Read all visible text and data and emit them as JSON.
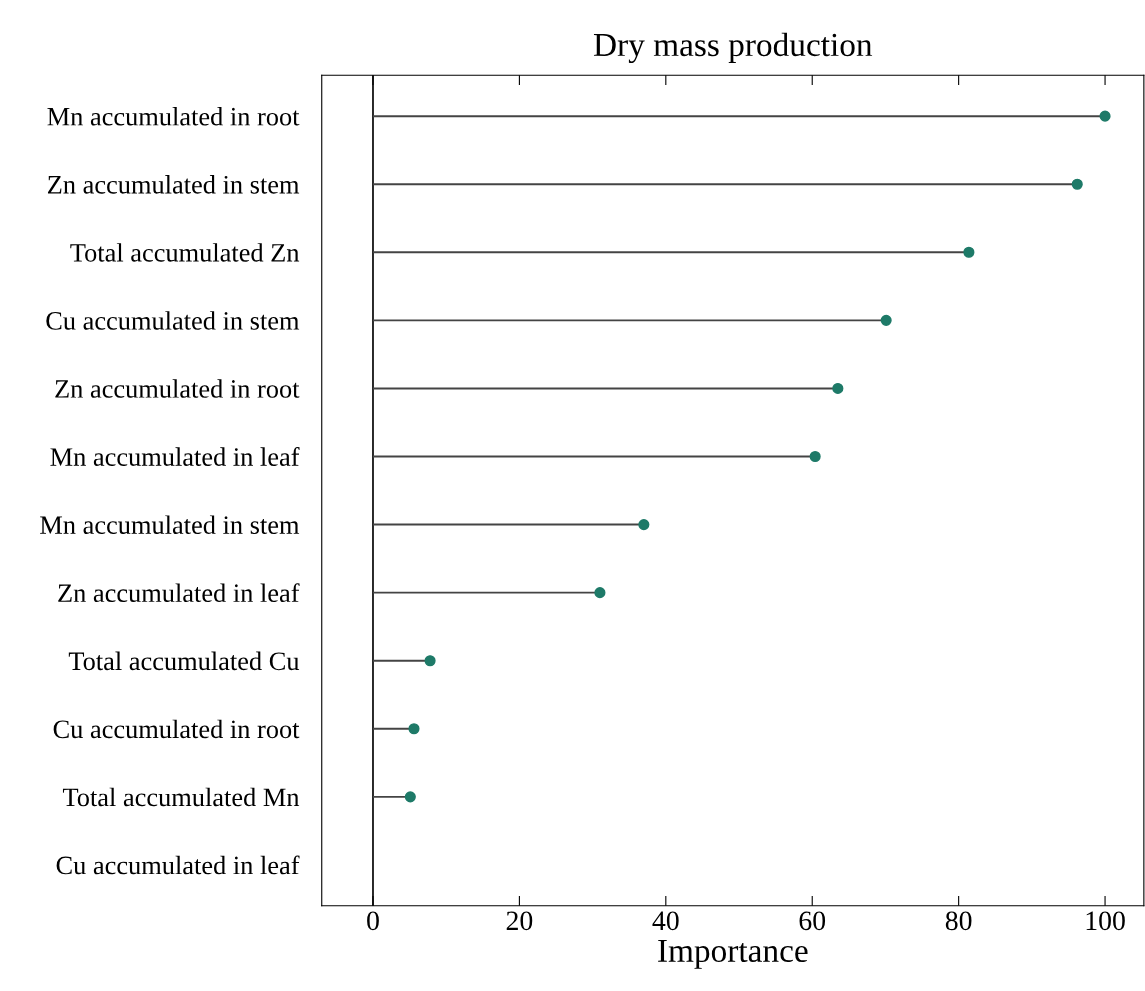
{
  "chart_data": {
    "type": "lollipop",
    "orientation": "horizontal",
    "title": "Dry mass production",
    "xlabel": "Importance",
    "categories": [
      "Mn accumulated in root",
      "Zn accumulated in stem",
      "Total accumulated Zn",
      "Cu accumulated in stem",
      "Zn accumulated in root",
      "Mn accumulated in leaf",
      "Mn accumulated in stem",
      "Zn accumulated in leaf",
      "Total accumulated Cu",
      "Cu accumulated in root",
      "Total accumulated Mn",
      "Cu accumulated in leaf"
    ],
    "values": [
      100,
      96.2,
      81.4,
      70.1,
      63.5,
      60.4,
      37.0,
      31.0,
      7.8,
      5.6,
      5.1,
      null
    ],
    "color": "#1e7a68",
    "marker": "circle",
    "xlim": [
      -7,
      105.3
    ],
    "xticks": [
      0,
      20,
      40,
      60,
      80,
      100
    ],
    "ref_lines": [
      {
        "axis": "x",
        "value": 0,
        "color": "#000000"
      }
    ],
    "grid": false,
    "legend": false
  }
}
